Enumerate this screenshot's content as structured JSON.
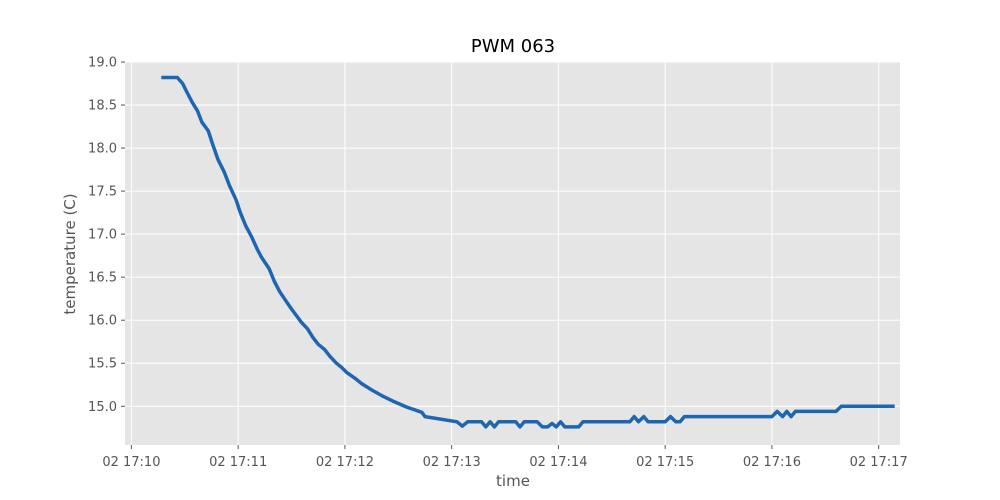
{
  "chart_data": {
    "type": "line",
    "title": "PWM 063",
    "xlabel": "time",
    "ylabel": "temperature (C)",
    "x_unit": "minutes after 02 17:10",
    "xlim": [
      -0.06,
      7.2
    ],
    "ylim": [
      14.55,
      19.0
    ],
    "x_ticks": [
      0,
      1,
      2,
      3,
      4,
      5,
      6,
      7
    ],
    "x_tick_labels": [
      "02 17:10",
      "02 17:11",
      "02 17:12",
      "02 17:13",
      "02 17:14",
      "02 17:15",
      "02 17:16",
      "02 17:17"
    ],
    "y_ticks": [
      15.0,
      15.5,
      16.0,
      16.5,
      17.0,
      17.5,
      18.0,
      18.5,
      19.0
    ],
    "y_tick_labels": [
      "15.0",
      "15.5",
      "16.0",
      "16.5",
      "17.0",
      "17.5",
      "18.0",
      "18.5",
      "19.0"
    ],
    "grid": true,
    "background": "#e5e5e5",
    "grid_color": "#ffffff",
    "series": [
      {
        "color": "#1f66b0",
        "x": [
          0.28,
          0.43,
          0.48,
          0.52,
          0.57,
          0.62,
          0.66,
          0.72,
          0.76,
          0.81,
          0.87,
          0.92,
          0.98,
          1.02,
          1.07,
          1.13,
          1.18,
          1.22,
          1.29,
          1.34,
          1.39,
          1.45,
          1.5,
          1.56,
          1.59,
          1.65,
          1.7,
          1.75,
          1.81,
          1.86,
          1.92,
          1.97,
          2.02,
          2.09,
          2.16,
          2.25,
          2.35,
          2.45,
          2.58,
          2.72,
          2.75,
          3.05,
          3.1,
          3.15,
          3.28,
          3.32,
          3.36,
          3.4,
          3.44,
          3.6,
          3.64,
          3.68,
          3.8,
          3.85,
          3.9,
          3.94,
          3.98,
          4.02,
          4.06,
          4.13,
          4.19,
          4.23,
          4.67,
          4.71,
          4.75,
          4.8,
          4.84,
          5.0,
          5.05,
          5.1,
          5.14,
          5.18,
          5.22,
          6.0,
          6.05,
          6.1,
          6.14,
          6.18,
          6.22,
          6.6,
          6.65,
          7.15
        ],
        "y": [
          18.82,
          18.82,
          18.75,
          18.65,
          18.53,
          18.43,
          18.3,
          18.2,
          18.05,
          17.87,
          17.72,
          17.56,
          17.4,
          17.25,
          17.1,
          16.96,
          16.82,
          16.73,
          16.6,
          16.45,
          16.33,
          16.22,
          16.13,
          16.03,
          15.98,
          15.9,
          15.8,
          15.72,
          15.66,
          15.58,
          15.5,
          15.45,
          15.39,
          15.33,
          15.26,
          15.19,
          15.12,
          15.06,
          14.99,
          14.93,
          14.88,
          14.82,
          14.77,
          14.82,
          14.82,
          14.76,
          14.82,
          14.76,
          14.82,
          14.82,
          14.76,
          14.82,
          14.82,
          14.76,
          14.76,
          14.8,
          14.76,
          14.82,
          14.76,
          14.76,
          14.76,
          14.82,
          14.82,
          14.88,
          14.82,
          14.88,
          14.82,
          14.82,
          14.88,
          14.82,
          14.82,
          14.88,
          14.88,
          14.88,
          14.94,
          14.88,
          14.94,
          14.88,
          14.94,
          14.94,
          15.0,
          15.0
        ]
      }
    ]
  }
}
